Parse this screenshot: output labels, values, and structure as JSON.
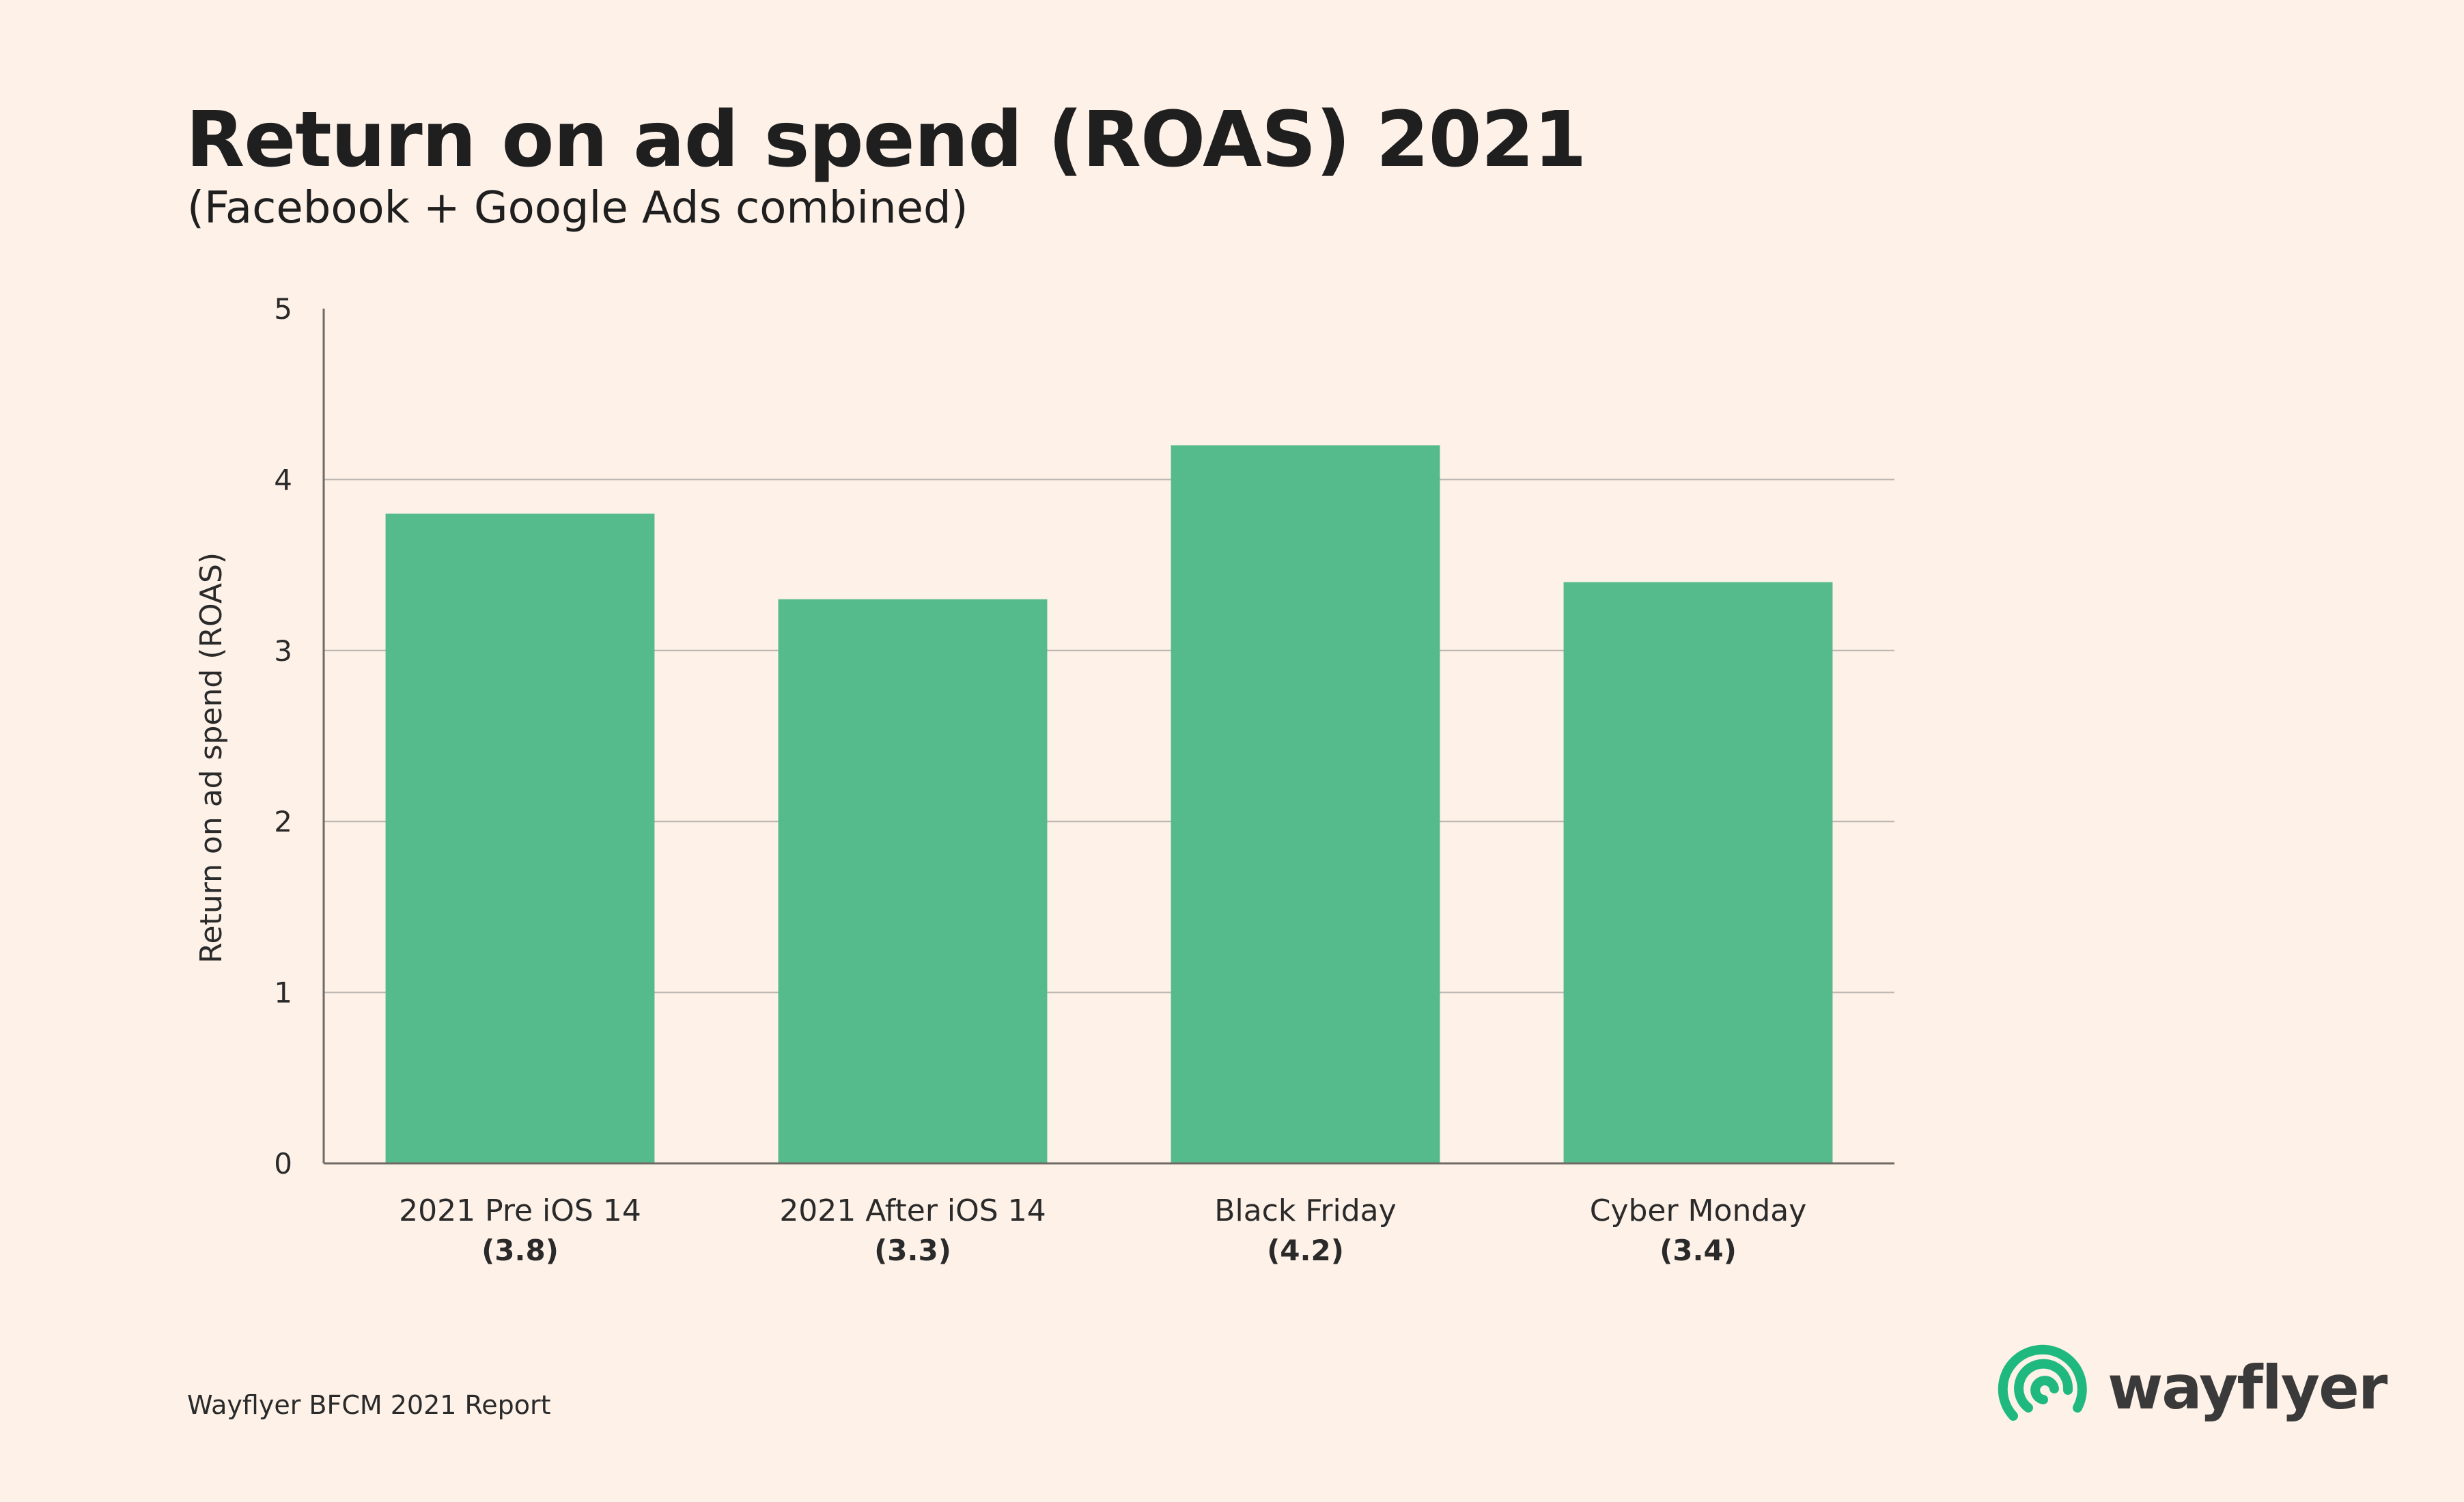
{
  "chart_data": {
    "type": "bar",
    "title": "Return on ad spend (ROAS) 2021",
    "subtitle": "(Facebook + Google Ads combined)",
    "xlabel": "",
    "ylabel": "Return on ad spend (ROAS)",
    "ylim": [
      0,
      5
    ],
    "yticks": [
      "0",
      "1",
      "2",
      "3",
      "4",
      "5"
    ],
    "grid": true,
    "categories": [
      "2021 Pre iOS 14",
      "2021 After iOS 14",
      "Black Friday",
      "Cyber Monday"
    ],
    "values": [
      3.8,
      3.3,
      4.2,
      3.4
    ],
    "value_labels": [
      "(3.8)",
      "(3.3)",
      "(4.2)",
      "(3.4)"
    ],
    "bar_color": "#55bb8c"
  },
  "footer": {
    "source": "Wayflyer BFCM 2021 Report"
  },
  "brand": {
    "name": "wayflyer",
    "logo_icon": "wayflyer-swirl-icon",
    "logo_color": "#1fb980"
  }
}
